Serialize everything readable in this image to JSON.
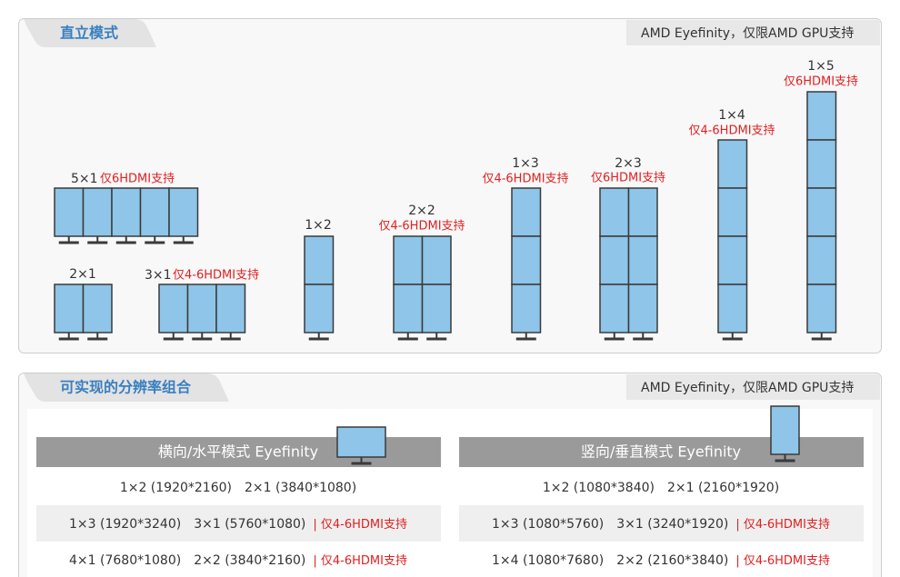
{
  "upright": {
    "title": "直立模式",
    "note": "AMD Eyefinity，仅限AMD GPU支持",
    "configs": [
      {
        "label": "5×1",
        "note": "仅6HDMI支持"
      },
      {
        "label": "2×1"
      },
      {
        "label": "3×1",
        "note": "仅4-6HDMI支持"
      },
      {
        "label": "1×2"
      },
      {
        "label": "2×2",
        "note": "仅4-6HDMI支持"
      },
      {
        "label": "1×3",
        "note": "仅4-6HDMI支持"
      },
      {
        "label": "2×3",
        "note": "仅6HDMI支持"
      },
      {
        "label": "1×4",
        "note": "仅4-6HDMI支持"
      },
      {
        "label": "1×5",
        "note": "仅6HDMI支持"
      }
    ]
  },
  "resolutions": {
    "title": "可实现的分辨率组合",
    "note": "AMD Eyefinity，仅限AMD GPU支持",
    "columns": [
      {
        "title": "横向/水平模式 Eyefinity",
        "rows": [
          {
            "items": [
              "1×2 (1920*2160)",
              "2×1 (3840*1080)"
            ]
          },
          {
            "items": [
              "1×3 (1920*3240)",
              "3×1 (5760*1080)"
            ],
            "note": "| 仅4-6HDMI支持"
          },
          {
            "items": [
              "4×1 (7680*1080)",
              "2×2 (3840*2160)"
            ],
            "note": "| 仅4-6HDMI支持"
          }
        ]
      },
      {
        "title": "竖向/垂直模式 Eyefinity",
        "rows": [
          {
            "items": [
              "1×2 (1080*3840)",
              "2×1 (2160*1920)"
            ]
          },
          {
            "items": [
              "1×3 (1080*5760)",
              "3×1 (3240*1920)"
            ],
            "note": "| 仅4-6HDMI支持"
          },
          {
            "items": [
              "1×4 (1080*7680)",
              "2×2 (2160*3840)"
            ],
            "note": "| 仅4-6HDMI支持"
          }
        ]
      }
    ]
  }
}
